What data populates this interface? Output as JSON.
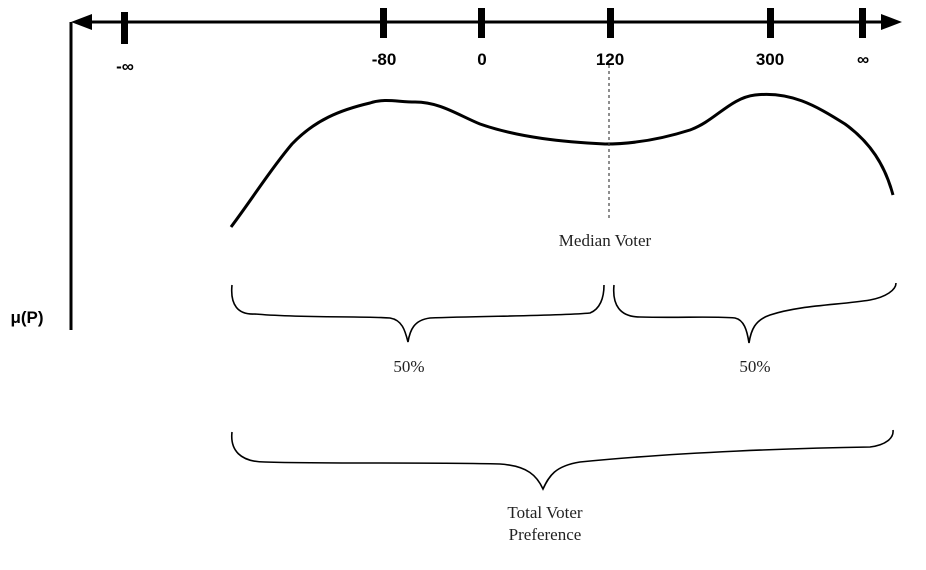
{
  "axis": {
    "ticks": [
      "-∞",
      "-80",
      "0",
      "120",
      "300",
      "∞"
    ],
    "y_label": "μ(P)"
  },
  "labels": {
    "median_voter": "Median Voter",
    "left_share": "50%",
    "right_share": "50%",
    "total_line1": "Total Voter",
    "total_line2": "Preference"
  }
}
